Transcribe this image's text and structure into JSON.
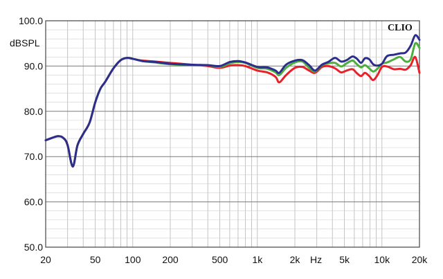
{
  "chart_data": {
    "type": "line",
    "title": "",
    "brand": "CLIO",
    "xlabel": "",
    "ylabel": "dBSPL",
    "x_scale": "log",
    "xlim": [
      20,
      20000
    ],
    "ylim": [
      50,
      100
    ],
    "grid": true,
    "x_ticks": [
      {
        "value": 20,
        "label": "20"
      },
      {
        "value": 50,
        "label": "50"
      },
      {
        "value": 100,
        "label": "100"
      },
      {
        "value": 200,
        "label": "200"
      },
      {
        "value": 500,
        "label": "500"
      },
      {
        "value": 1000,
        "label": "1k"
      },
      {
        "value": 2000,
        "label": "2k"
      },
      {
        "value": 5000,
        "label": "5k"
      },
      {
        "value": 10000,
        "label": "10k"
      },
      {
        "value": 20000,
        "label": "20k"
      }
    ],
    "x_unit_label": "Hz",
    "y_ticks": [
      {
        "value": 50,
        "label": "50.0"
      },
      {
        "value": 60,
        "label": "60.0"
      },
      {
        "value": 70,
        "label": "70.0"
      },
      {
        "value": 80,
        "label": "80.0"
      },
      {
        "value": 90,
        "label": "90.0"
      },
      {
        "value": 100,
        "label": "100.0"
      }
    ],
    "series": [
      {
        "color": "#e8202a",
        "points": [
          [
            20,
            73.6
          ],
          [
            25,
            74.5
          ],
          [
            28,
            74.0
          ],
          [
            30,
            72.5
          ],
          [
            33,
            67.8
          ],
          [
            36,
            72.5
          ],
          [
            40,
            75.0
          ],
          [
            45,
            77.5
          ],
          [
            50,
            82.0
          ],
          [
            55,
            85.0
          ],
          [
            60,
            86.5
          ],
          [
            70,
            89.5
          ],
          [
            80,
            91.3
          ],
          [
            90,
            91.8
          ],
          [
            100,
            91.6
          ],
          [
            120,
            91.2
          ],
          [
            150,
            91.0
          ],
          [
            200,
            90.7
          ],
          [
            300,
            90.3
          ],
          [
            400,
            90.0
          ],
          [
            500,
            89.6
          ],
          [
            600,
            90.1
          ],
          [
            700,
            90.2
          ],
          [
            800,
            90.0
          ],
          [
            1000,
            89.0
          ],
          [
            1200,
            88.6
          ],
          [
            1400,
            87.6
          ],
          [
            1500,
            86.4
          ],
          [
            1700,
            88.0
          ],
          [
            2000,
            89.6
          ],
          [
            2300,
            89.8
          ],
          [
            2600,
            89.0
          ],
          [
            2900,
            88.5
          ],
          [
            3300,
            89.8
          ],
          [
            3700,
            90.0
          ],
          [
            4200,
            89.5
          ],
          [
            4700,
            88.6
          ],
          [
            5200,
            89.0
          ],
          [
            5800,
            89.3
          ],
          [
            6300,
            88.4
          ],
          [
            6800,
            87.8
          ],
          [
            7300,
            88.5
          ],
          [
            7900,
            87.8
          ],
          [
            8500,
            86.9
          ],
          [
            9200,
            88.0
          ],
          [
            10000,
            89.8
          ],
          [
            11000,
            89.9
          ],
          [
            12500,
            89.3
          ],
          [
            14000,
            89.4
          ],
          [
            15500,
            89.2
          ],
          [
            17000,
            90.2
          ],
          [
            18500,
            92.0
          ],
          [
            20000,
            88.5
          ]
        ]
      },
      {
        "color": "#4caf3c",
        "points": [
          [
            20,
            73.6
          ],
          [
            25,
            74.5
          ],
          [
            28,
            74.0
          ],
          [
            30,
            72.5
          ],
          [
            33,
            67.8
          ],
          [
            36,
            72.5
          ],
          [
            40,
            75.0
          ],
          [
            45,
            77.5
          ],
          [
            50,
            82.0
          ],
          [
            55,
            85.0
          ],
          [
            60,
            86.5
          ],
          [
            70,
            89.5
          ],
          [
            80,
            91.3
          ],
          [
            90,
            91.8
          ],
          [
            100,
            91.6
          ],
          [
            120,
            91.1
          ],
          [
            150,
            90.8
          ],
          [
            200,
            90.4
          ],
          [
            300,
            90.2
          ],
          [
            400,
            90.2
          ],
          [
            500,
            89.8
          ],
          [
            600,
            90.6
          ],
          [
            700,
            90.9
          ],
          [
            800,
            90.7
          ],
          [
            1000,
            89.6
          ],
          [
            1200,
            89.4
          ],
          [
            1400,
            88.6
          ],
          [
            1500,
            88.0
          ],
          [
            1700,
            89.6
          ],
          [
            2000,
            90.8
          ],
          [
            2300,
            91.0
          ],
          [
            2600,
            89.6
          ],
          [
            2900,
            88.8
          ],
          [
            3300,
            90.2
          ],
          [
            3700,
            90.6
          ],
          [
            4200,
            90.7
          ],
          [
            4700,
            89.9
          ],
          [
            5200,
            90.6
          ],
          [
            5800,
            91.2
          ],
          [
            6300,
            90.4
          ],
          [
            6800,
            89.7
          ],
          [
            7300,
            90.2
          ],
          [
            7900,
            89.5
          ],
          [
            8500,
            88.8
          ],
          [
            9200,
            89.4
          ],
          [
            10000,
            90.5
          ],
          [
            11000,
            90.8
          ],
          [
            12500,
            91.5
          ],
          [
            14000,
            92.0
          ],
          [
            15500,
            91.0
          ],
          [
            17000,
            91.5
          ],
          [
            18500,
            95.0
          ],
          [
            20000,
            94.0
          ]
        ]
      },
      {
        "color": "#2c2d8c",
        "points": [
          [
            20,
            73.6
          ],
          [
            25,
            74.5
          ],
          [
            28,
            74.0
          ],
          [
            30,
            72.5
          ],
          [
            33,
            67.8
          ],
          [
            36,
            72.5
          ],
          [
            40,
            75.0
          ],
          [
            45,
            77.5
          ],
          [
            50,
            82.0
          ],
          [
            55,
            85.0
          ],
          [
            60,
            86.5
          ],
          [
            70,
            89.5
          ],
          [
            80,
            91.3
          ],
          [
            90,
            91.8
          ],
          [
            100,
            91.6
          ],
          [
            120,
            91.1
          ],
          [
            150,
            90.9
          ],
          [
            200,
            90.5
          ],
          [
            300,
            90.3
          ],
          [
            400,
            90.2
          ],
          [
            500,
            90.0
          ],
          [
            600,
            90.9
          ],
          [
            700,
            91.1
          ],
          [
            800,
            90.8
          ],
          [
            1000,
            89.8
          ],
          [
            1200,
            89.7
          ],
          [
            1400,
            89.0
          ],
          [
            1500,
            88.5
          ],
          [
            1700,
            90.3
          ],
          [
            2000,
            91.2
          ],
          [
            2300,
            91.3
          ],
          [
            2600,
            90.2
          ],
          [
            2900,
            89.0
          ],
          [
            3300,
            90.3
          ],
          [
            3700,
            90.9
          ],
          [
            4200,
            91.8
          ],
          [
            4700,
            91.0
          ],
          [
            5200,
            91.3
          ],
          [
            5800,
            92.1
          ],
          [
            6300,
            91.6
          ],
          [
            6800,
            90.7
          ],
          [
            7300,
            91.7
          ],
          [
            7900,
            91.5
          ],
          [
            8500,
            90.4
          ],
          [
            9200,
            90.1
          ],
          [
            10000,
            90.5
          ],
          [
            11000,
            92.2
          ],
          [
            12500,
            92.5
          ],
          [
            14000,
            92.8
          ],
          [
            15500,
            93.0
          ],
          [
            17000,
            94.5
          ],
          [
            18500,
            96.8
          ],
          [
            20000,
            95.8
          ]
        ]
      }
    ]
  }
}
